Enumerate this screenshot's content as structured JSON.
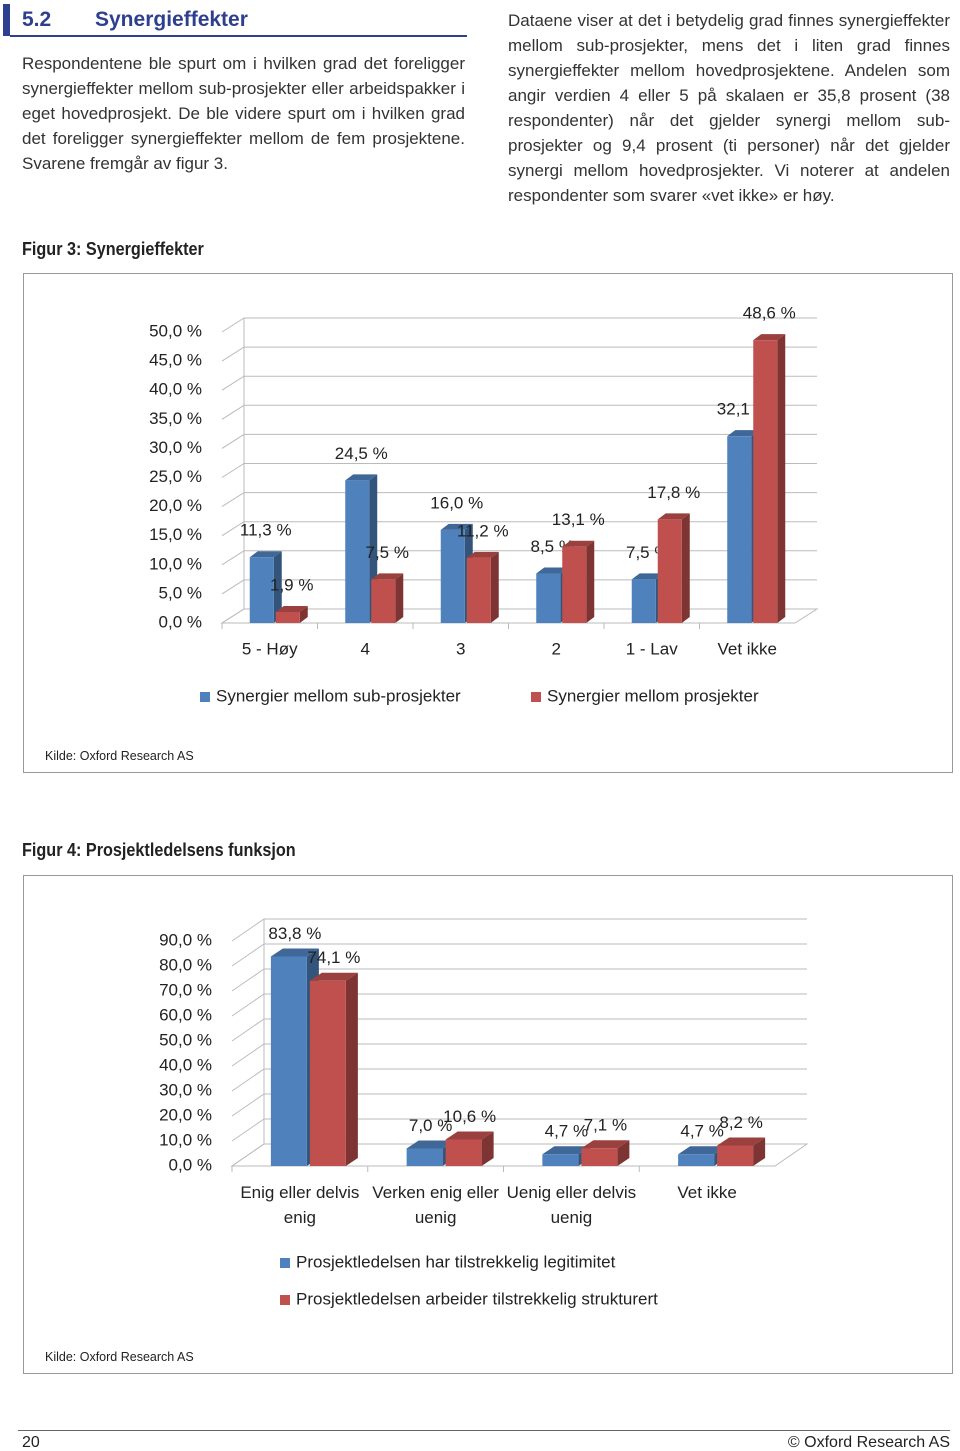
{
  "header": {
    "number": "5.2",
    "title": "Synergieffekter"
  },
  "paragraphs": [
    "Respondentene ble spurt om i hvilken grad det foreligger synergieffekter mellom sub-prosjekter eller arbeidspakker i eget hovedprosjekt. De ble videre spurt om i hvilken grad det foreligger synergieffekter mellom de fem prosjektene. Svarene fremgår av figur 3.",
    "Dataene viser at det i betydelig grad finnes synergieffekter mellom sub-prosjekter, mens det i liten grad finnes synergieffekter mellom hovedprosjektene. Andelen som angir verdien 4 eller 5 på skalaen er 35,8 prosent (38 respondenter) når det gjelder synergi mellom sub-prosjekter og 9,4 prosent (ti personer) når det gjelder synergi mellom hovedprosjekter. Vi noterer at andelen respondenter som svarer «vet ikke» er høy."
  ],
  "figures": [
    {
      "caption": "Figur 3: Synergieffekter",
      "source": "Kilde: Oxford Research AS"
    },
    {
      "caption": "Figur 4: Prosjektledelsens funksjon",
      "source": "Kilde: Oxford Research AS"
    }
  ],
  "chart_data": [
    {
      "type": "bar3d",
      "categories": [
        "5 - Høy",
        "4",
        "3",
        "2",
        "1 - Lav",
        "Vet ikke"
      ],
      "series": [
        {
          "name": "Synergier mellom sub-prosjekter",
          "color": "#4f81bd",
          "values": [
            11.3,
            24.5,
            16.0,
            8.5,
            7.5,
            32.1
          ],
          "value_labels": [
            "11,3 %",
            "24,5 %",
            "16,0 %",
            "8,5 %",
            "7,5 %",
            "32,1 %"
          ]
        },
        {
          "name": "Synergier mellom prosjekter",
          "color": "#c0504d",
          "values": [
            1.9,
            7.5,
            11.2,
            13.1,
            17.8,
            48.6
          ],
          "value_labels": [
            "1,9 %",
            "7,5 %",
            "11,2 %",
            "13,1 %",
            "17,8 %",
            "48,6 %"
          ]
        }
      ],
      "ylim": [
        0,
        50
      ],
      "yticks": [
        {
          "value": 0,
          "label": "0,0 %"
        },
        {
          "value": 5,
          "label": "5,0 %"
        },
        {
          "value": 10,
          "label": "10,0 %"
        },
        {
          "value": 15,
          "label": "15,0 %"
        },
        {
          "value": 20,
          "label": "20,0 %"
        },
        {
          "value": 25,
          "label": "25,0 %"
        },
        {
          "value": 30,
          "label": "30,0 %"
        },
        {
          "value": 35,
          "label": "35,0 %"
        },
        {
          "value": 40,
          "label": "40,0 %"
        },
        {
          "value": 45,
          "label": "45,0 %"
        },
        {
          "value": 50,
          "label": "50,0 %"
        }
      ],
      "grid": true,
      "legend": "bottom"
    },
    {
      "type": "bar3d",
      "categories": [
        "Enig eller delvis enig",
        "Verken enig eller uenig",
        "Uenig eller delvis uenig",
        "Vet ikke"
      ],
      "series": [
        {
          "name": "Prosjektledelsen har tilstrekkelig legitimitet",
          "color": "#4f81bd",
          "values": [
            83.8,
            7.0,
            4.7,
            4.7
          ],
          "value_labels": [
            "83,8 %",
            "7,0 %",
            "4,7 %",
            "4,7 %"
          ]
        },
        {
          "name": "Prosjektledelsen arbeider tilstrekkelig strukturert",
          "color": "#c0504d",
          "values": [
            74.1,
            10.6,
            7.1,
            8.2
          ],
          "value_labels": [
            "74,1 %",
            "10,6 %",
            "7,1 %",
            "8,2 %"
          ]
        }
      ],
      "ylim": [
        0,
        90
      ],
      "yticks": [
        {
          "value": 0,
          "label": "0,0 %"
        },
        {
          "value": 10,
          "label": "10,0 %"
        },
        {
          "value": 20,
          "label": "20,0 %"
        },
        {
          "value": 30,
          "label": "30,0 %"
        },
        {
          "value": 40,
          "label": "40,0 %"
        },
        {
          "value": 50,
          "label": "50,0 %"
        },
        {
          "value": 60,
          "label": "60,0 %"
        },
        {
          "value": 70,
          "label": "70,0 %"
        },
        {
          "value": 80,
          "label": "80,0 %"
        },
        {
          "value": 90,
          "label": "90,0 %"
        }
      ],
      "grid": true,
      "legend": "bottom"
    }
  ],
  "footer": {
    "page": "20",
    "copyright": "© Oxford Research AS"
  }
}
